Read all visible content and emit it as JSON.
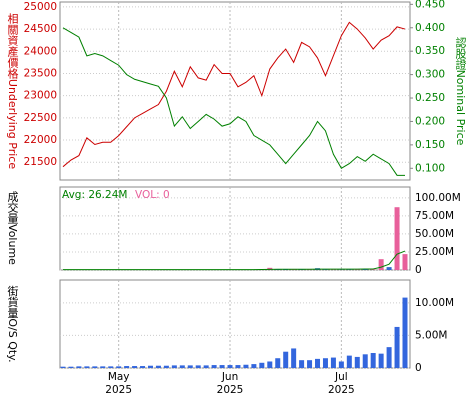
{
  "chart_data": [
    {
      "type": "line",
      "y_label": "相關資產價格Underlying Price",
      "y2_label": "認股證Nominal Price",
      "ylim": [
        21100,
        25110
      ],
      "yticks": [
        21500,
        22000,
        22500,
        23000,
        23500,
        24000,
        24500,
        25000
      ],
      "y2lim": [
        0.075,
        0.455
      ],
      "y2ticks": [
        {
          "value": 0.1,
          "label": "0.100"
        },
        {
          "value": 0.15,
          "label": "0.150"
        },
        {
          "value": 0.2,
          "label": "0.200"
        },
        {
          "value": 0.25,
          "label": "0.250"
        },
        {
          "value": 0.3,
          "label": "0.300"
        },
        {
          "value": 0.35,
          "label": "0.350"
        },
        {
          "value": 0.4,
          "label": "0.400"
        },
        {
          "value": 0.45,
          "label": "0.450"
        }
      ],
      "series": [
        {
          "color": "#cc0000",
          "values": [
            21400,
            21550,
            21650,
            22050,
            21900,
            21950,
            21950,
            22100,
            22300,
            22500,
            22600,
            22700,
            22800,
            23100,
            23550,
            23200,
            23650,
            23400,
            23350,
            23700,
            23500,
            23500,
            23200,
            23300,
            23450,
            23000,
            23600,
            23850,
            24050,
            23750,
            24200,
            24100,
            23850,
            23450,
            23900,
            24350,
            24650,
            24500,
            24300,
            24050,
            24250,
            24350,
            24550,
            24500
          ]
        },
        {
          "color": "#008000",
          "axis": "y2",
          "values": [
            0.4,
            0.39,
            0.38,
            0.34,
            0.345,
            0.34,
            0.33,
            0.32,
            0.3,
            0.29,
            0.285,
            0.28,
            0.275,
            0.25,
            0.19,
            0.21,
            0.185,
            0.2,
            0.215,
            0.205,
            0.19,
            0.195,
            0.21,
            0.2,
            0.17,
            0.16,
            0.15,
            0.13,
            0.11,
            0.13,
            0.15,
            0.17,
            0.2,
            0.18,
            0.13,
            0.1,
            0.11,
            0.125,
            0.115,
            0.13,
            0.12,
            0.11,
            0.085,
            0.085
          ]
        }
      ]
    },
    {
      "type": "bar",
      "y_label": "成交量Volume",
      "avg_label": "Avg: 26.24M",
      "avg_color": "#008000",
      "vol_label": "VOL: 0",
      "vol_color": "#e8609b",
      "ylim": [
        0,
        115000000
      ],
      "yticks": [
        0,
        {
          "value": 25000000,
          "label": "25.00M"
        },
        {
          "value": 50000000,
          "label": "50.00M"
        },
        {
          "value": 75000000,
          "label": "75.00M"
        },
        {
          "value": 100000000,
          "label": "100.00M"
        }
      ],
      "values": [
        0,
        0,
        0,
        0,
        0,
        0,
        0,
        0,
        0,
        0,
        0,
        0,
        0,
        0,
        0,
        0,
        0,
        0,
        0,
        0,
        0,
        0,
        0,
        0,
        500000,
        800000,
        3000000,
        1000000,
        800000,
        600000,
        500000,
        500000,
        2500000,
        500000,
        300000,
        300000,
        400000,
        500000,
        800000,
        1000000,
        15000000,
        4000000,
        87000000,
        22000000
      ],
      "colors": [
        "#3366cc",
        "#3366cc",
        "#3366cc",
        "#3366cc",
        "#3366cc",
        "#3366cc",
        "#3366cc",
        "#3366cc",
        "#3366cc",
        "#3366cc",
        "#3366cc",
        "#3366cc",
        "#3366cc",
        "#3366cc",
        "#3366cc",
        "#3366cc",
        "#3366cc",
        "#3366cc",
        "#3366cc",
        "#3366cc",
        "#3366cc",
        "#3366cc",
        "#3366cc",
        "#3366cc",
        "#3366cc",
        "#e8609b",
        "#e8609b",
        "#3366cc",
        "#3366cc",
        "#e8609b",
        "#3366cc",
        "#e8609b",
        "#3366cc",
        "#3366cc",
        "#e8609b",
        "#3366cc",
        "#3366cc",
        "#e8609b",
        "#3366cc",
        "#e8609b",
        "#e8609b",
        "#3366cc",
        "#e8609b",
        "#e8609b"
      ],
      "avg_values": [
        500000,
        500000,
        500000,
        500000,
        500000,
        500000,
        500000,
        500000,
        500000,
        500000,
        500000,
        500000,
        500000,
        500000,
        500000,
        500000,
        500000,
        500000,
        500000,
        500000,
        500000,
        500000,
        500000,
        500000,
        600000,
        700000,
        900000,
        1000000,
        1000000,
        1000000,
        1000000,
        1000000,
        1200000,
        1200000,
        1200000,
        1200000,
        1200000,
        1200000,
        1300000,
        1400000,
        4000000,
        8000000,
        22000000,
        26240000
      ]
    },
    {
      "type": "bar",
      "y_label": "街貨量O/S Qty.",
      "color": "#3366dd",
      "ylim": [
        0,
        13500000
      ],
      "yticks": [
        0,
        {
          "value": 5000000,
          "label": "5.00M"
        },
        {
          "value": 10000000,
          "label": "10.00M"
        }
      ],
      "xlim": [
        0,
        43
      ],
      "xticks": [
        {
          "value": 7,
          "label": "May\n2025"
        },
        {
          "value": 21,
          "label": "Jun\n2025"
        },
        {
          "value": 35,
          "label": "Jul\n2025"
        }
      ],
      "values": [
        200000,
        200000,
        250000,
        250000,
        250000,
        250000,
        250000,
        250000,
        300000,
        300000,
        300000,
        350000,
        350000,
        350000,
        400000,
        400000,
        400000,
        400000,
        400000,
        450000,
        450000,
        450000,
        450000,
        500000,
        600000,
        800000,
        1000000,
        1500000,
        2500000,
        3000000,
        1200000,
        1200000,
        1400000,
        1500000,
        1600000,
        1000000,
        1900000,
        1700000,
        2100000,
        2300000,
        2200000,
        3200000,
        6300000,
        10800000
      ]
    }
  ]
}
